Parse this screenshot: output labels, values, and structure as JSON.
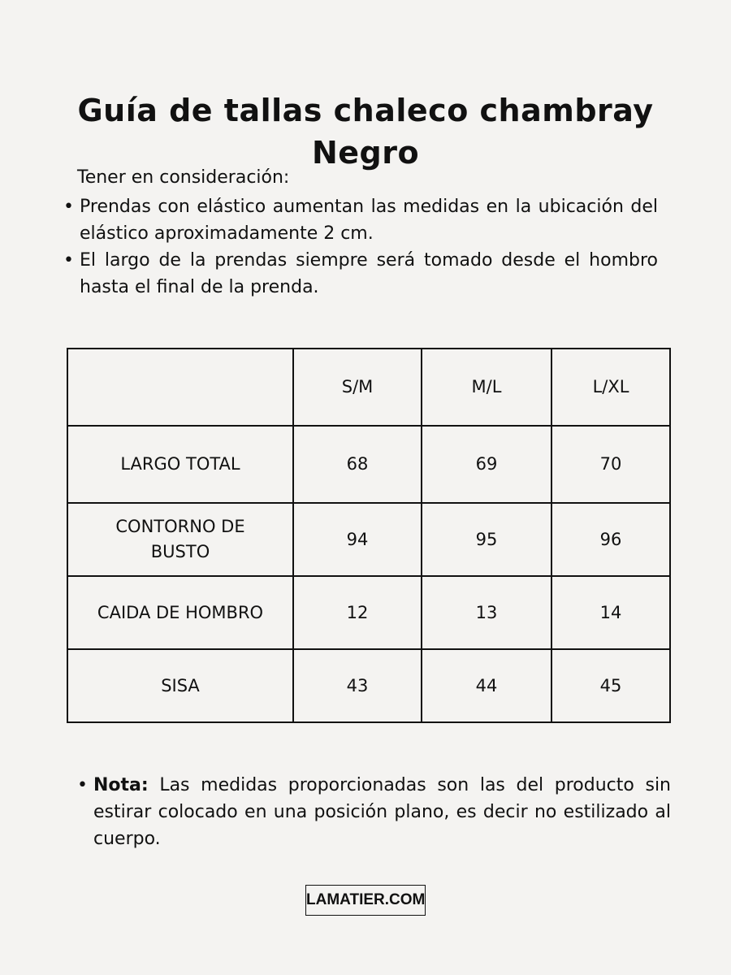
{
  "title_line1": "Guía de tallas chaleco chambray",
  "title_line2": "Negro",
  "intro": "Tener en consideración:",
  "bullets": [
    "Prendas con elástico aumentan las medidas en la ubicación del elástico aproximadamente 2 cm.",
    "El largo de la prendas siempre será tomado desde el hombro hasta el final de la prenda."
  ],
  "table": {
    "headers": [
      "",
      "S/M",
      "M/L",
      "L/XL"
    ],
    "rows": [
      [
        "LARGO TOTAL",
        "68",
        "69",
        "70"
      ],
      [
        "CONTORNO DE BUSTO",
        "94",
        "95",
        "96"
      ],
      [
        "CAIDA DE HOMBRO",
        "12",
        "13",
        "14"
      ],
      [
        "SISA",
        "43",
        "44",
        "45"
      ]
    ]
  },
  "note": {
    "label": "Nota:",
    "text": " Las medidas proporcionadas son las del producto sin estirar colocado en una posición plano, es decir no estilizado al cuerpo."
  },
  "logo": "LAMATIER.COM"
}
